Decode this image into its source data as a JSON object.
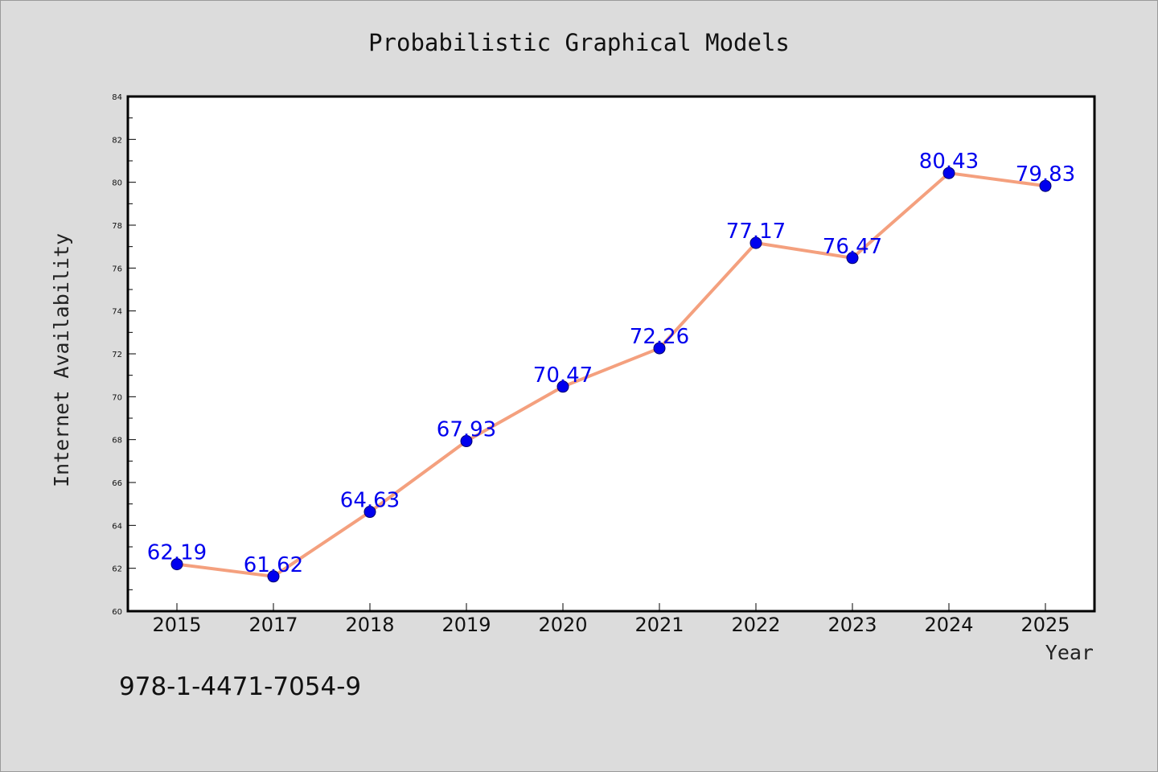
{
  "chart_data": {
    "type": "line",
    "title": "Probabilistic Graphical Models",
    "xlabel": "Year",
    "ylabel": "Internet Availability",
    "categories": [
      "2015",
      "2017",
      "2018",
      "2019",
      "2020",
      "2021",
      "2022",
      "2023",
      "2024",
      "2025"
    ],
    "values": [
      62.19,
      61.62,
      64.63,
      67.93,
      70.47,
      72.26,
      77.17,
      76.47,
      80.43,
      79.83
    ],
    "data_labels": [
      "62.19",
      "61.62",
      "64.63",
      "67.93",
      "70.47",
      "72.26",
      "77.17",
      "76.47",
      "80.43",
      "79.83"
    ],
    "ylim": [
      60,
      84
    ],
    "yticks": [
      "60",
      "62",
      "64",
      "66",
      "68",
      "70",
      "72",
      "74",
      "76",
      "78",
      "80",
      "82",
      "84"
    ],
    "grid": false,
    "colors": {
      "line": "#f4a07e",
      "marker": "#0000ee",
      "label": "#0000ee"
    }
  },
  "annotation": {
    "isbn": "978-1-4471-7054-9"
  }
}
